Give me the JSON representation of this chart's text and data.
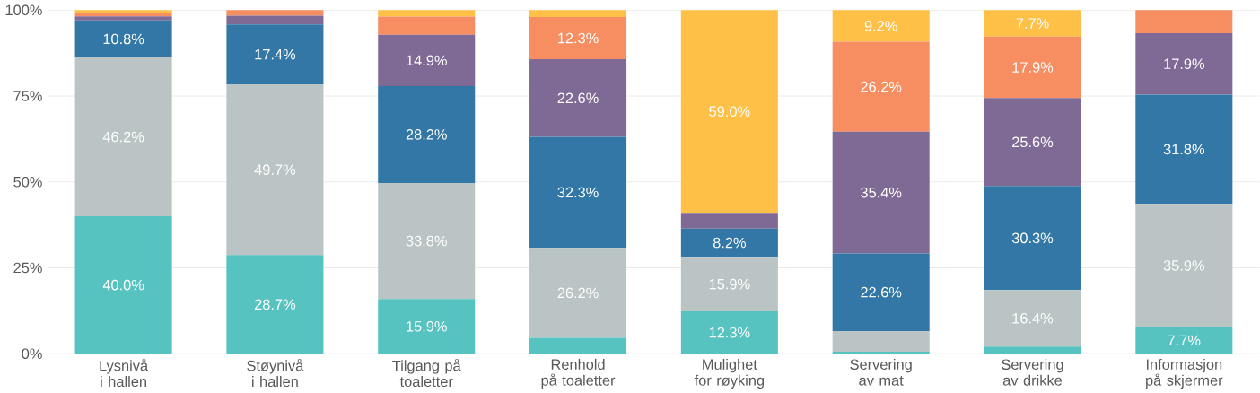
{
  "chart_data": {
    "type": "bar",
    "stacked": true,
    "grid": "y",
    "categories": [
      "Lysnivå i hallen",
      "Støynivå i hallen",
      "Tilgang på toaletter",
      "Renhold på toaletter",
      "Mulighet for røyking",
      "Servering av mat",
      "Servering av drikke",
      "Informasjon på skjermer"
    ],
    "ylim": [
      0,
      100
    ],
    "yticks": [
      {
        "value": 0,
        "label": "0%"
      },
      {
        "value": 25,
        "label": "25%"
      },
      {
        "value": 50,
        "label": "50%"
      },
      {
        "value": 75,
        "label": "75%"
      },
      {
        "value": 100,
        "label": "100%"
      }
    ],
    "series": [
      {
        "color": "#56c3c0",
        "values": [
          40.0,
          28.7,
          15.9,
          4.6,
          12.3,
          0.6,
          2.1,
          7.7
        ],
        "value_labels": [
          "40.0%",
          "28.7%",
          "15.9%",
          null,
          "12.3%",
          null,
          null,
          "7.7%"
        ]
      },
      {
        "color": "#bac4c5",
        "values": [
          46.2,
          49.7,
          33.8,
          26.2,
          15.9,
          6.0,
          16.4,
          35.9
        ],
        "value_labels": [
          "46.2%",
          "49.7%",
          "33.8%",
          "26.2%",
          "15.9%",
          null,
          "16.4%",
          "35.9%"
        ]
      },
      {
        "color": "#3277a5",
        "values": [
          10.8,
          17.4,
          28.2,
          32.3,
          8.2,
          22.6,
          30.3,
          31.8
        ],
        "value_labels": [
          "10.8%",
          "17.4%",
          "28.2%",
          "32.3%",
          "8.2%",
          "22.6%",
          "30.3%",
          "31.8%"
        ]
      },
      {
        "color": "#7f6a96",
        "values": [
          1.2,
          2.6,
          14.9,
          22.6,
          4.6,
          35.4,
          25.6,
          17.9
        ],
        "value_labels": [
          null,
          null,
          "14.9%",
          "22.6%",
          null,
          "35.4%",
          "25.6%",
          "17.9%"
        ]
      },
      {
        "color": "#f68e62",
        "values": [
          1.0,
          1.6,
          5.3,
          12.3,
          0,
          26.2,
          17.9,
          6.7
        ],
        "value_labels": [
          null,
          null,
          null,
          "12.3%",
          null,
          "26.2%",
          "17.9%",
          null
        ]
      },
      {
        "color": "#ffc048",
        "values": [
          0.8,
          0,
          1.9,
          2.0,
          59.0,
          9.2,
          7.7,
          0
        ],
        "value_labels": [
          null,
          null,
          null,
          null,
          "59.0%",
          "9.2%",
          "7.7%",
          null
        ]
      }
    ]
  }
}
